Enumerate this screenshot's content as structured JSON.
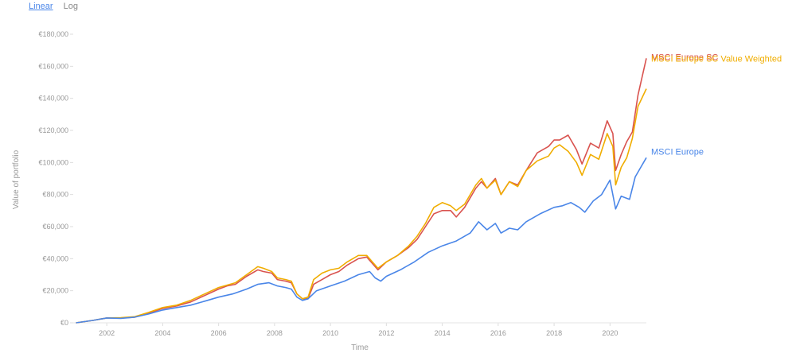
{
  "controls": {
    "scale_options": [
      "Linear",
      "Log"
    ],
    "selected": "Linear"
  },
  "chart_data": {
    "type": "line",
    "title": "",
    "xlabel": "Time",
    "ylabel": "Value of portfolio",
    "xlim": [
      2000.8,
      2021.3
    ],
    "ylim": [
      0,
      180000
    ],
    "x_ticks": [
      2002,
      2004,
      2006,
      2008,
      2010,
      2012,
      2014,
      2016,
      2018,
      2020
    ],
    "y_ticks": [
      0,
      20000,
      40000,
      60000,
      80000,
      100000,
      120000,
      140000,
      160000,
      180000
    ],
    "y_tick_labels": [
      "€0",
      "€20,000",
      "€40,000",
      "€60,000",
      "€80,000",
      "€100,000",
      "€120,000",
      "€140,000",
      "€160,000",
      "€180,000"
    ],
    "grid": false,
    "legend": "inline-right",
    "series": [
      {
        "name": "MSCI Europe SC",
        "color": "#d9534f",
        "points": [
          [
            2000.9,
            0
          ],
          [
            2001.5,
            1500
          ],
          [
            2002.0,
            3000
          ],
          [
            2002.5,
            3000
          ],
          [
            2003.0,
            3500
          ],
          [
            2003.5,
            6000
          ],
          [
            2004.0,
            9000
          ],
          [
            2004.5,
            10500
          ],
          [
            2005.0,
            13000
          ],
          [
            2005.5,
            17000
          ],
          [
            2006.0,
            21000
          ],
          [
            2006.3,
            23000
          ],
          [
            2006.6,
            24000
          ],
          [
            2007.0,
            29000
          ],
          [
            2007.4,
            33000
          ],
          [
            2007.6,
            32000
          ],
          [
            2007.9,
            31000
          ],
          [
            2008.1,
            27000
          ],
          [
            2008.4,
            26000
          ],
          [
            2008.6,
            25000
          ],
          [
            2008.8,
            18000
          ],
          [
            2009.0,
            15000
          ],
          [
            2009.2,
            15000
          ],
          [
            2009.4,
            24000
          ],
          [
            2009.7,
            27000
          ],
          [
            2010.0,
            30000
          ],
          [
            2010.3,
            32000
          ],
          [
            2010.6,
            36000
          ],
          [
            2011.0,
            40000
          ],
          [
            2011.3,
            41000
          ],
          [
            2011.5,
            37000
          ],
          [
            2011.7,
            33000
          ],
          [
            2012.0,
            38000
          ],
          [
            2012.4,
            42000
          ],
          [
            2012.8,
            47000
          ],
          [
            2013.1,
            52000
          ],
          [
            2013.4,
            60000
          ],
          [
            2013.7,
            68000
          ],
          [
            2014.0,
            70000
          ],
          [
            2014.3,
            70000
          ],
          [
            2014.5,
            66000
          ],
          [
            2014.8,
            72000
          ],
          [
            2015.2,
            84000
          ],
          [
            2015.4,
            88000
          ],
          [
            2015.6,
            84000
          ],
          [
            2015.9,
            90000
          ],
          [
            2016.1,
            80000
          ],
          [
            2016.4,
            88000
          ],
          [
            2016.7,
            86000
          ],
          [
            2017.0,
            95000
          ],
          [
            2017.4,
            106000
          ],
          [
            2017.8,
            110000
          ],
          [
            2018.0,
            114000
          ],
          [
            2018.2,
            114000
          ],
          [
            2018.5,
            117000
          ],
          [
            2018.8,
            108000
          ],
          [
            2019.0,
            99000
          ],
          [
            2019.3,
            112000
          ],
          [
            2019.6,
            109000
          ],
          [
            2019.9,
            126000
          ],
          [
            2020.1,
            118000
          ],
          [
            2020.2,
            95000
          ],
          [
            2020.4,
            105000
          ],
          [
            2020.6,
            113000
          ],
          [
            2020.8,
            119000
          ],
          [
            2021.0,
            142000
          ],
          [
            2021.3,
            165000
          ]
        ]
      },
      {
        "name": "MSCI Europe SC Value Weighted",
        "color": "#f0ad00",
        "points": [
          [
            2000.9,
            0
          ],
          [
            2001.5,
            1500
          ],
          [
            2002.0,
            3000
          ],
          [
            2002.5,
            3200
          ],
          [
            2003.0,
            3800
          ],
          [
            2003.5,
            6500
          ],
          [
            2004.0,
            9500
          ],
          [
            2004.5,
            11000
          ],
          [
            2005.0,
            14000
          ],
          [
            2005.5,
            18000
          ],
          [
            2006.0,
            22000
          ],
          [
            2006.3,
            23500
          ],
          [
            2006.6,
            25000
          ],
          [
            2007.0,
            30000
          ],
          [
            2007.4,
            35000
          ],
          [
            2007.6,
            34000
          ],
          [
            2007.9,
            32000
          ],
          [
            2008.1,
            28000
          ],
          [
            2008.4,
            27000
          ],
          [
            2008.6,
            26000
          ],
          [
            2008.8,
            18000
          ],
          [
            2009.0,
            15000
          ],
          [
            2009.2,
            16000
          ],
          [
            2009.4,
            27000
          ],
          [
            2009.7,
            31000
          ],
          [
            2010.0,
            33000
          ],
          [
            2010.3,
            34000
          ],
          [
            2010.6,
            38000
          ],
          [
            2011.0,
            42000
          ],
          [
            2011.3,
            42000
          ],
          [
            2011.5,
            38000
          ],
          [
            2011.7,
            34000
          ],
          [
            2012.0,
            38000
          ],
          [
            2012.4,
            42000
          ],
          [
            2012.8,
            48000
          ],
          [
            2013.1,
            54000
          ],
          [
            2013.4,
            62000
          ],
          [
            2013.7,
            72000
          ],
          [
            2014.0,
            75000
          ],
          [
            2014.3,
            73000
          ],
          [
            2014.5,
            70000
          ],
          [
            2014.8,
            74000
          ],
          [
            2015.2,
            86000
          ],
          [
            2015.4,
            90000
          ],
          [
            2015.6,
            84000
          ],
          [
            2015.9,
            89000
          ],
          [
            2016.1,
            80000
          ],
          [
            2016.4,
            88000
          ],
          [
            2016.7,
            85000
          ],
          [
            2017.0,
            95000
          ],
          [
            2017.4,
            101000
          ],
          [
            2017.8,
            104000
          ],
          [
            2018.0,
            109000
          ],
          [
            2018.2,
            111000
          ],
          [
            2018.5,
            107000
          ],
          [
            2018.8,
            100000
          ],
          [
            2019.0,
            92000
          ],
          [
            2019.3,
            105000
          ],
          [
            2019.6,
            102000
          ],
          [
            2019.9,
            118000
          ],
          [
            2020.1,
            110000
          ],
          [
            2020.2,
            86000
          ],
          [
            2020.4,
            97000
          ],
          [
            2020.6,
            103000
          ],
          [
            2020.8,
            115000
          ],
          [
            2021.0,
            135000
          ],
          [
            2021.3,
            146000
          ]
        ]
      },
      {
        "name": "MSCI Europe",
        "color": "#4a86e8",
        "points": [
          [
            2000.9,
            0
          ],
          [
            2001.5,
            1500
          ],
          [
            2002.0,
            3000
          ],
          [
            2002.5,
            2800
          ],
          [
            2003.0,
            3500
          ],
          [
            2003.5,
            5500
          ],
          [
            2004.0,
            8000
          ],
          [
            2004.5,
            9500
          ],
          [
            2005.0,
            11000
          ],
          [
            2005.5,
            13500
          ],
          [
            2006.0,
            16000
          ],
          [
            2006.5,
            18000
          ],
          [
            2007.0,
            21000
          ],
          [
            2007.4,
            24000
          ],
          [
            2007.8,
            25000
          ],
          [
            2008.1,
            23000
          ],
          [
            2008.4,
            22000
          ],
          [
            2008.6,
            21000
          ],
          [
            2008.8,
            16000
          ],
          [
            2009.0,
            14000
          ],
          [
            2009.2,
            15000
          ],
          [
            2009.5,
            20000
          ],
          [
            2010.0,
            23000
          ],
          [
            2010.5,
            26000
          ],
          [
            2011.0,
            30000
          ],
          [
            2011.4,
            32000
          ],
          [
            2011.6,
            28000
          ],
          [
            2011.8,
            26000
          ],
          [
            2012.0,
            29000
          ],
          [
            2012.5,
            33000
          ],
          [
            2013.0,
            38000
          ],
          [
            2013.5,
            44000
          ],
          [
            2014.0,
            48000
          ],
          [
            2014.5,
            51000
          ],
          [
            2015.0,
            56000
          ],
          [
            2015.3,
            63000
          ],
          [
            2015.6,
            58000
          ],
          [
            2015.9,
            62000
          ],
          [
            2016.1,
            56000
          ],
          [
            2016.4,
            59000
          ],
          [
            2016.7,
            58000
          ],
          [
            2017.0,
            63000
          ],
          [
            2017.5,
            68000
          ],
          [
            2018.0,
            72000
          ],
          [
            2018.3,
            73000
          ],
          [
            2018.6,
            75000
          ],
          [
            2018.9,
            72000
          ],
          [
            2019.1,
            69000
          ],
          [
            2019.4,
            76000
          ],
          [
            2019.7,
            80000
          ],
          [
            2020.0,
            89000
          ],
          [
            2020.2,
            71000
          ],
          [
            2020.4,
            79000
          ],
          [
            2020.7,
            77000
          ],
          [
            2020.9,
            91000
          ],
          [
            2021.1,
            97000
          ],
          [
            2021.3,
            103000
          ]
        ]
      }
    ]
  }
}
